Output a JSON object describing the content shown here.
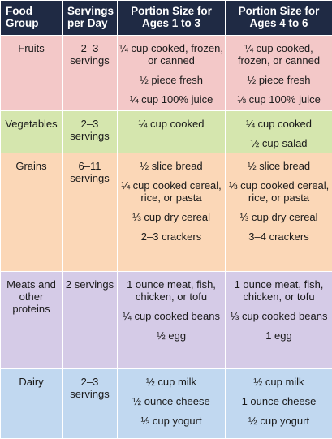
{
  "headers": {
    "food_group": "Food Group",
    "servings": "Servings per Day",
    "ages_1_3": "Portion Size for Ages 1 to 3",
    "ages_4_6": "Portion Size for Ages 4 to 6"
  },
  "rows": [
    {
      "group": "Fruits",
      "servings": "2–3 servings",
      "ages_1_3": [
        "¼ cup cooked, frozen, or canned",
        "½ piece fresh",
        "¼ cup 100% juice"
      ],
      "ages_4_6": [
        "¼ cup cooked, frozen, or canned",
        "½ piece fresh",
        "⅓ cup 100% juice"
      ]
    },
    {
      "group": "Vegetables",
      "servings": "2–3 servings",
      "ages_1_3": [
        "¼ cup cooked"
      ],
      "ages_4_6": [
        "¼ cup cooked",
        "½ cup salad"
      ]
    },
    {
      "group": "Grains",
      "servings": "6–11 servings",
      "ages_1_3": [
        "½ slice bread",
        "¼ cup cooked cereal, rice, or pasta",
        "⅓ cup dry cereal",
        "2–3 crackers"
      ],
      "ages_4_6": [
        "½ slice bread",
        "⅓ cup cooked cereal, rice, or pasta",
        "⅓ cup dry cereal",
        "3–4 crackers"
      ]
    },
    {
      "group": "Meats and other proteins",
      "servings": "2 servings",
      "ages_1_3": [
        "1 ounce meat, fish, chicken, or tofu",
        "¼ cup cooked beans",
        "½ egg"
      ],
      "ages_4_6": [
        "1 ounce meat, fish, chicken, or tofu",
        "⅓ cup cooked beans",
        "1 egg"
      ]
    },
    {
      "group": "Dairy",
      "servings": "2–3 servings",
      "ages_1_3": [
        "½ cup milk",
        "½ ounce cheese",
        "⅓ cup yogurt"
      ],
      "ages_4_6": [
        "½ cup milk",
        "1 ounce cheese",
        "½ cup yogurt"
      ]
    }
  ],
  "colors": {
    "header_bg": "#1f2a44",
    "fruits": "#f3c8c8",
    "vegetables": "#d5e6ae",
    "grains": "#fbd7b7",
    "meats": "#d5cbe7",
    "dairy": "#c1d8f0"
  }
}
